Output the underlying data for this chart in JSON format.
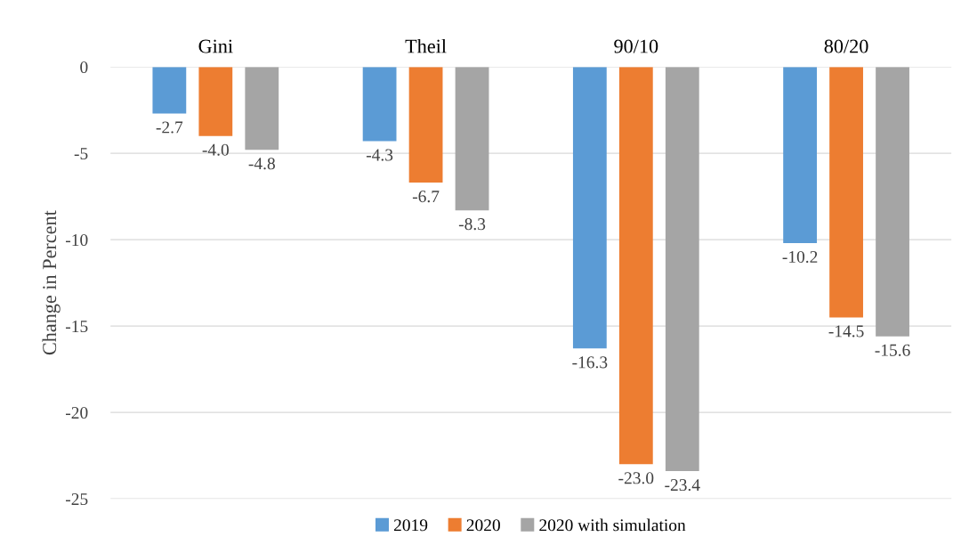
{
  "chart_data": {
    "type": "bar",
    "ylabel": "Change in Percent",
    "categories": [
      "Gini",
      "Theil",
      "90/10",
      "80/20"
    ],
    "series": [
      {
        "name": "2019",
        "color": "#5b9bd5",
        "values": [
          -2.7,
          -4.3,
          -16.3,
          -10.2
        ],
        "value_labels": [
          "-2.7",
          "-4.3",
          "-16.3",
          "-10.2"
        ]
      },
      {
        "name": "2020",
        "color": "#ed7d31",
        "values": [
          -4.0,
          -6.7,
          -23.0,
          -14.5
        ],
        "value_labels": [
          "-4.0",
          "-6.7",
          "-23.0",
          "-14.5"
        ]
      },
      {
        "name": "2020 with simulation",
        "color": "#a5a5a5",
        "values": [
          -4.8,
          -8.3,
          -23.4,
          -15.6
        ],
        "value_labels": [
          "-4.8",
          "-8.3",
          "-23.4",
          "-15.6"
        ]
      }
    ],
    "ylim": [
      -25,
      0
    ],
    "yticks": [
      0,
      -5,
      -10,
      -15,
      -20,
      -25
    ],
    "grid": "y",
    "legend": "bottom"
  }
}
